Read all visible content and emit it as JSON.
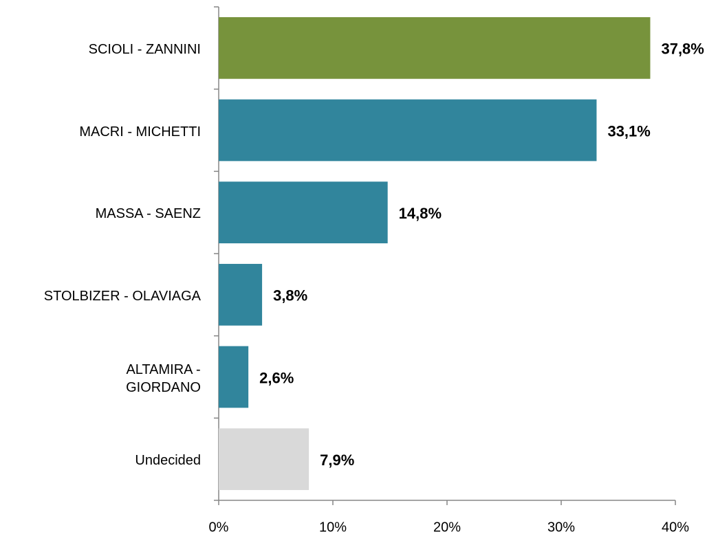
{
  "chart_data": {
    "type": "barh",
    "categories": [
      "SCIOLI - ZANNINI",
      "MACRI - MICHETTI",
      "MASSA - SAENZ",
      "STOLBIZER - OLAVIAGA",
      "ALTAMIRA -\nGIORDANO",
      "Undecided"
    ],
    "values": [
      37.8,
      33.1,
      14.8,
      3.8,
      2.6,
      7.9
    ],
    "value_labels": [
      "37,8%",
      "33,1%",
      "14,8%",
      "3,8%",
      "2,6%",
      "7,9%"
    ],
    "colors": [
      "#77933c",
      "#31859c",
      "#31859c",
      "#31859c",
      "#31859c",
      "#d9d9d9"
    ],
    "xlim": [
      0,
      40
    ],
    "xticks": [
      {
        "value": 0,
        "label": "0%"
      },
      {
        "value": 10,
        "label": "10%"
      },
      {
        "value": 20,
        "label": "20%"
      },
      {
        "value": 30,
        "label": "30%"
      },
      {
        "value": 40,
        "label": "40%"
      }
    ]
  }
}
